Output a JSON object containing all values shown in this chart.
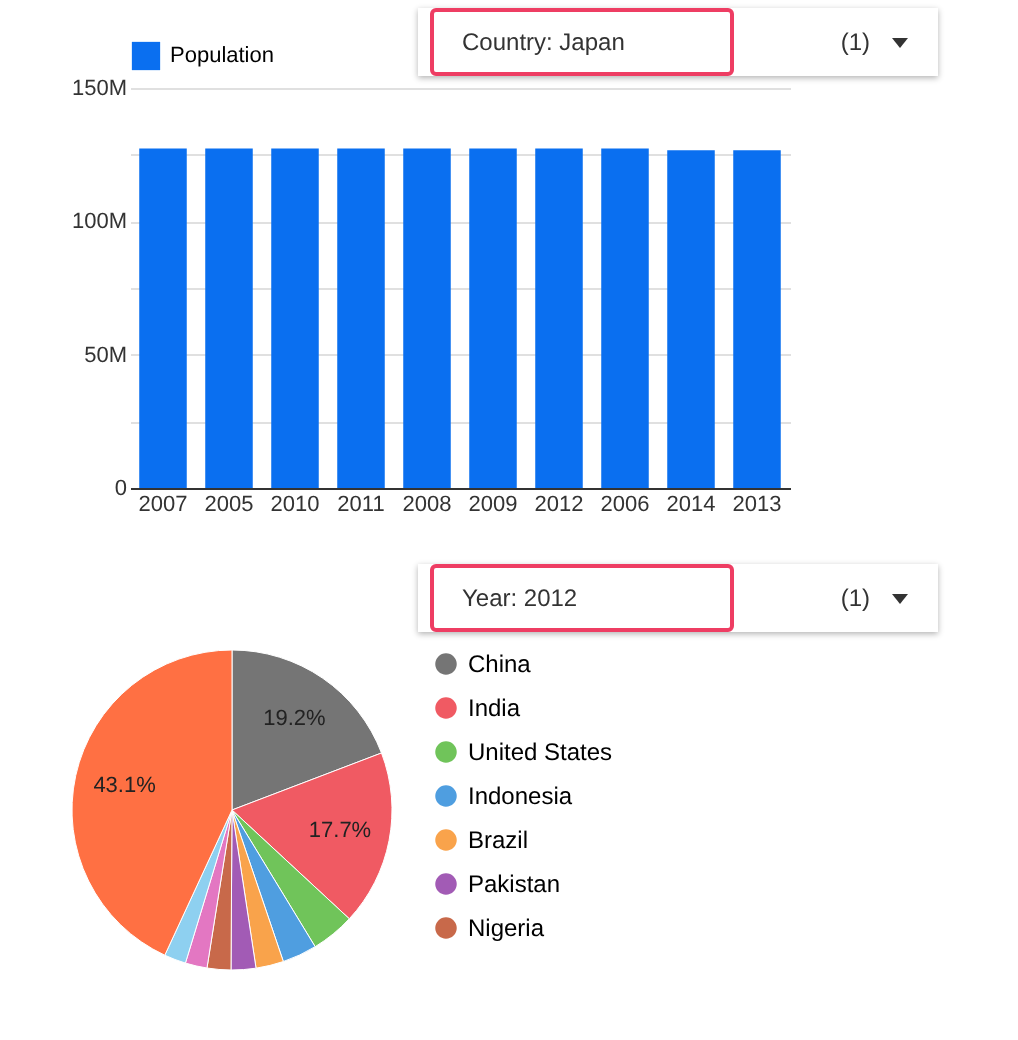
{
  "chart_data": [
    {
      "type": "bar",
      "categories": [
        "2007",
        "2005",
        "2010",
        "2011",
        "2008",
        "2009",
        "2012",
        "2006",
        "2014",
        "2013"
      ],
      "series": [
        {
          "name": "Population",
          "color": "#0a6ff0",
          "values": [
            127300000,
            127300000,
            127300000,
            127300000,
            127300000,
            127300000,
            127300000,
            127300000,
            126700000,
            126700000
          ]
        }
      ],
      "ylim": [
        0,
        150000000
      ],
      "yticks": [
        0,
        {
          "value": 25000000,
          "label": null
        },
        {
          "value": 50000000,
          "label": "50M"
        },
        {
          "value": 75000000,
          "label": null
        },
        {
          "value": 100000000,
          "label": "100M"
        },
        {
          "value": 125000000,
          "label": null
        },
        {
          "value": 150000000,
          "label": "150M"
        }
      ],
      "grid": "y",
      "legend": "top left",
      "annotations": [
        "Country: Japan",
        "(1)"
      ]
    },
    {
      "type": "pie",
      "categories": [
        "China",
        "India",
        "United States",
        "Indonesia",
        "Brazil",
        "Pakistan",
        "Nigeria",
        null,
        null,
        null
      ],
      "values": [
        19.2,
        17.7,
        4.4,
        3.5,
        2.8,
        2.5,
        2.4,
        2.2,
        2.2,
        43.1
      ],
      "colors": [
        "#757575",
        "#f05a63",
        "#70c45a",
        "#4f9ee0",
        "#f9a34b",
        "#a25bb5",
        "#c8694a",
        "#e377c2",
        "#8ed0f0",
        "#ff7043"
      ],
      "value_labels": [
        "19.2%",
        "17.7%",
        null,
        null,
        null,
        null,
        null,
        null,
        null,
        "43.1%"
      ],
      "legend": "right",
      "annotations": [
        "Year: 2012",
        "(1)"
      ]
    }
  ]
}
